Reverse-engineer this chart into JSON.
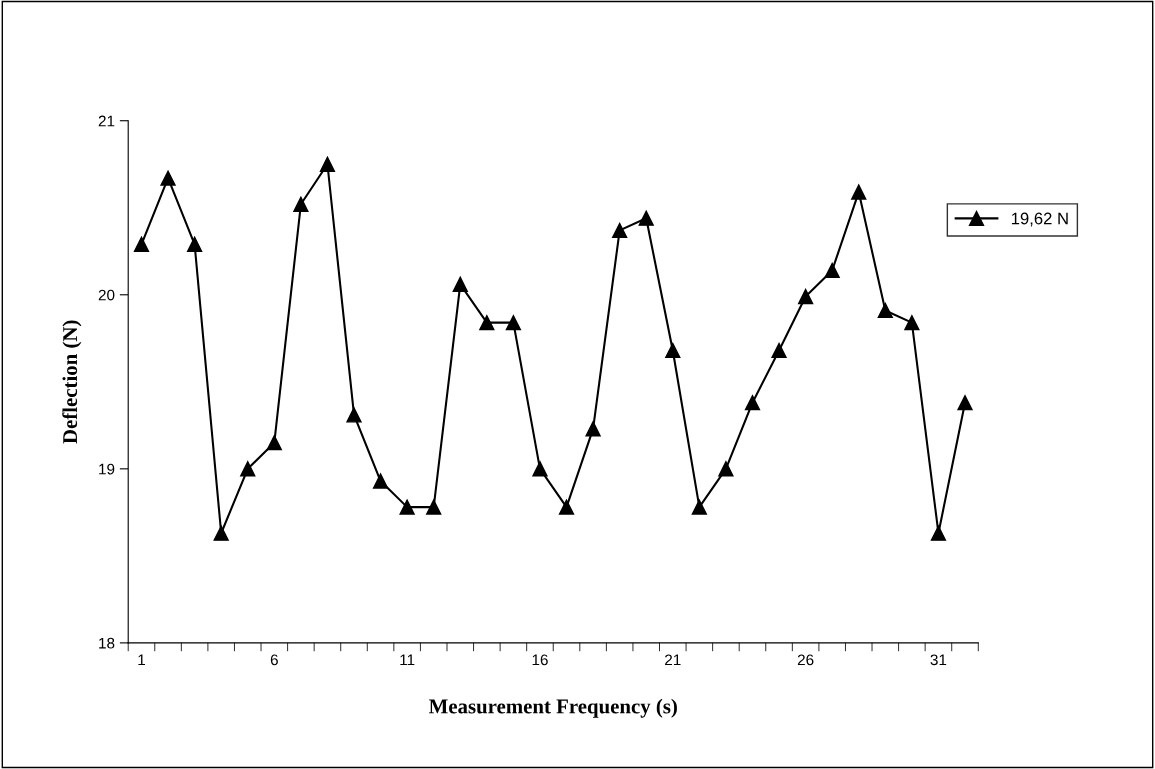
{
  "chart_data": {
    "type": "line",
    "xlabel": "Measurement Frequency (s)",
    "ylabel": "Deflection (N)",
    "categories": [
      "1",
      null,
      null,
      null,
      null,
      "6",
      null,
      null,
      null,
      null,
      "11",
      null,
      null,
      null,
      null,
      "16",
      null,
      null,
      null,
      null,
      "21",
      null,
      null,
      null,
      null,
      "26",
      null,
      null,
      null,
      null,
      "31",
      null
    ],
    "series": [
      {
        "name": "19,62 N",
        "color": "#000000",
        "values": [
          20.29,
          20.67,
          20.29,
          18.63,
          19.0,
          19.15,
          20.52,
          20.75,
          19.31,
          18.93,
          18.78,
          18.78,
          20.06,
          19.84,
          19.84,
          19.0,
          18.78,
          19.23,
          20.37,
          20.44,
          19.68,
          18.78,
          19.0,
          19.38,
          19.68,
          19.99,
          20.14,
          20.59,
          19.91,
          19.84,
          18.63,
          19.38
        ]
      }
    ],
    "ylim": [
      18,
      21
    ],
    "yticks": [
      18,
      19,
      20,
      21
    ],
    "grid": false,
    "legend": "right",
    "marker": "triangle",
    "line_style": "solid"
  }
}
